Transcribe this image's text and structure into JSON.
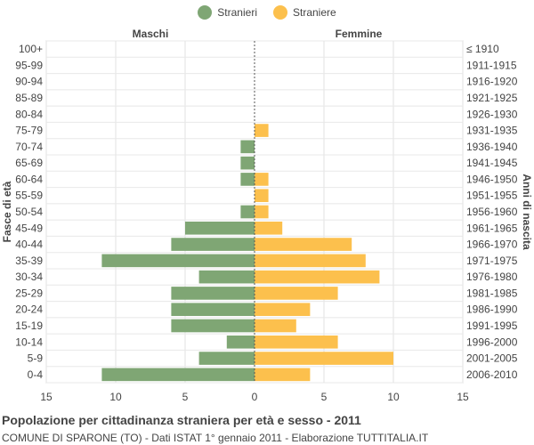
{
  "legend": {
    "male_label": "Stranieri",
    "female_label": "Straniere",
    "male_color": "#7fa674",
    "female_color": "#fcc04d"
  },
  "headers": {
    "left": "Maschi",
    "right": "Femmine"
  },
  "footer": {
    "title": "Popolazione per cittadinanza straniera per età e sesso - 2011",
    "subtitle": "COMUNE DI SPARONE (TO) - Dati ISTAT 1° gennaio 2011 - Elaborazione TUTTITALIA.IT"
  },
  "chart_data": {
    "type": "bar",
    "orientation": "horizontal-population-pyramid",
    "ylabel_left": "Fasce di età",
    "ylabel_right": "Anni di nascita",
    "categories": [
      "100+",
      "95-99",
      "90-94",
      "85-89",
      "80-84",
      "75-79",
      "70-74",
      "65-69",
      "60-64",
      "55-59",
      "50-54",
      "45-49",
      "40-44",
      "35-39",
      "30-34",
      "25-29",
      "20-24",
      "15-19",
      "10-14",
      "5-9",
      "0-4"
    ],
    "birth_years": [
      "≤ 1910",
      "1911-1915",
      "1916-1920",
      "1921-1925",
      "1926-1930",
      "1931-1935",
      "1936-1940",
      "1941-1945",
      "1946-1950",
      "1951-1955",
      "1956-1960",
      "1961-1965",
      "1966-1970",
      "1971-1975",
      "1976-1980",
      "1981-1985",
      "1986-1990",
      "1991-1995",
      "1996-2000",
      "2001-2005",
      "2006-2010"
    ],
    "series": [
      {
        "name": "Stranieri",
        "values": [
          0,
          0,
          0,
          0,
          0,
          0,
          1,
          1,
          1,
          0,
          1,
          5,
          6,
          11,
          4,
          6,
          6,
          6,
          2,
          4,
          11
        ]
      },
      {
        "name": "Straniere",
        "values": [
          0,
          0,
          0,
          0,
          0,
          1,
          0,
          0,
          1,
          1,
          1,
          2,
          7,
          8,
          9,
          6,
          4,
          3,
          6,
          10,
          4
        ]
      }
    ],
    "x_ticks": [
      "15",
      "10",
      "5",
      "0",
      "5",
      "10",
      "15"
    ],
    "xlim": [
      -15,
      15
    ],
    "grid": true
  }
}
